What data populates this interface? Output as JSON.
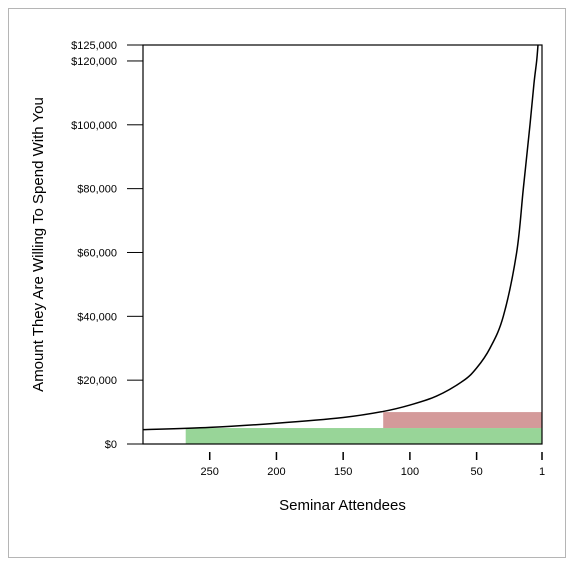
{
  "chart_data": {
    "type": "line",
    "title": "",
    "xlabel": "Seminar Attendees",
    "ylabel": "Amount They Are Willing To Spend With You",
    "x_reversed": true,
    "xlim": [
      300,
      1
    ],
    "ylim": [
      0,
      125000
    ],
    "x_ticks": [
      {
        "value": 250,
        "label": "250"
      },
      {
        "value": 200,
        "label": "200"
      },
      {
        "value": 150,
        "label": "150"
      },
      {
        "value": 100,
        "label": "100"
      },
      {
        "value": 50,
        "label": "50"
      },
      {
        "value": 1,
        "label": "1"
      }
    ],
    "y_ticks": [
      {
        "value": 0,
        "label": "$0"
      },
      {
        "value": 20000,
        "label": "$20,000"
      },
      {
        "value": 40000,
        "label": "$40,000"
      },
      {
        "value": 60000,
        "label": "$60,000"
      },
      {
        "value": 80000,
        "label": "$80,000"
      },
      {
        "value": 100000,
        "label": "$100,000"
      },
      {
        "value": 120000,
        "label": "$120,000"
      },
      {
        "value": 125000,
        "label": "$125,000"
      }
    ],
    "series": [
      {
        "color": "#000000",
        "x": [
          300,
          250,
          200,
          150,
          120,
          100,
          80,
          60,
          50,
          40,
          30,
          20,
          15,
          10,
          7,
          5,
          4
        ],
        "y": [
          4500,
          5200,
          6500,
          8300,
          10200,
          12200,
          15000,
          19800,
          23800,
          30000,
          40000,
          60000,
          80000,
          100000,
          113000,
          120000,
          125000
        ]
      }
    ],
    "bands": [
      {
        "x_from": 268,
        "x_to": 1,
        "y_from": 0,
        "y_to": 5000,
        "color": "#98d598"
      },
      {
        "x_from": 120,
        "x_to": 1,
        "y_from": 5000,
        "y_to": 10000,
        "color": "#d49a9a"
      }
    ],
    "grid": false
  }
}
